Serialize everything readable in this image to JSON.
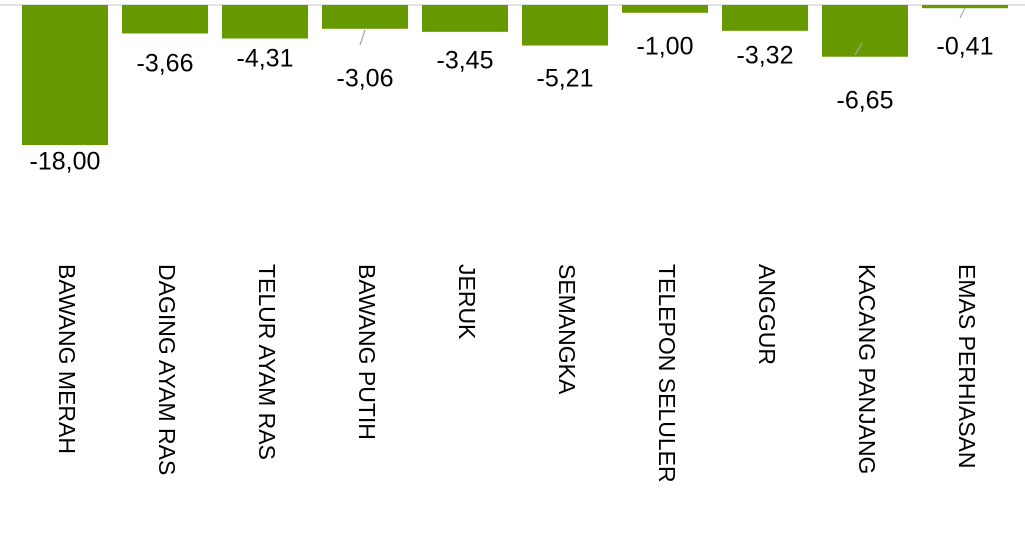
{
  "chart_data": {
    "type": "bar",
    "categories": [
      "BAWANG MERAH",
      "DAGING AYAM RAS",
      "TELUR AYAM RAS",
      "BAWANG PUTIH",
      "JERUK",
      "SEMANGKA",
      "TELEPON SELULER",
      "ANGGUR",
      "KACANG PANJANG",
      "EMAS PERHIASAN"
    ],
    "values": [
      -18.0,
      -3.66,
      -4.31,
      -3.06,
      -3.45,
      -5.21,
      -1.0,
      -3.32,
      -6.65,
      -0.41
    ],
    "value_labels": [
      "-18,00",
      "-3,66",
      "-4,31",
      "-3,06",
      "-3,45",
      "-5,21",
      "-1,00",
      "-3,32",
      "-6,65",
      "-0,41"
    ],
    "color": "#669900",
    "ylim": [
      -25,
      0
    ]
  }
}
